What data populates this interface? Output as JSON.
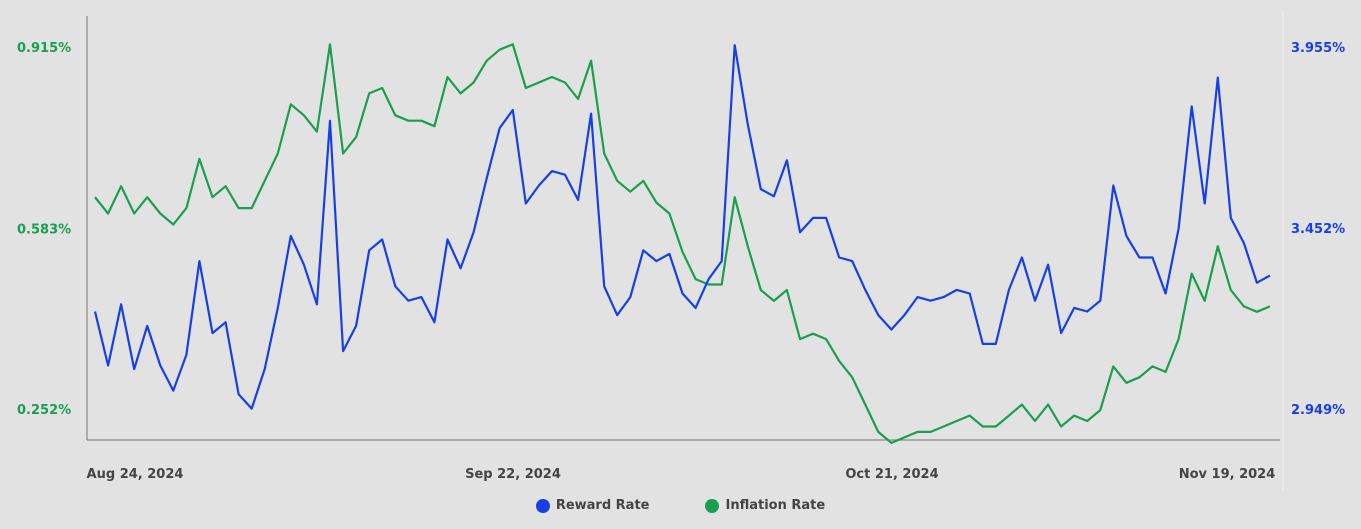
{
  "chart_data": {
    "type": "line",
    "title": "",
    "x_labels": [
      "Aug 24, 2024",
      "Sep 22, 2024",
      "Oct 21, 2024",
      "Nov 19, 2024"
    ],
    "left_axis": {
      "ticks": [
        "0.915%",
        "0.583%",
        "0.252%"
      ],
      "values": [
        0.915,
        0.583,
        0.252
      ],
      "color": "#1a9e50"
    },
    "right_axis": {
      "ticks": [
        "3.955%",
        "3.452%",
        "2.949%"
      ],
      "values": [
        3.955,
        3.452,
        2.949
      ],
      "color": "#1640e6"
    },
    "series": [
      {
        "name": "Reward Rate",
        "axis": "right",
        "color": "#1640e6",
        "values": [
          3.22,
          3.07,
          3.24,
          3.06,
          3.18,
          3.07,
          3.0,
          3.1,
          3.36,
          3.16,
          3.19,
          2.99,
          2.95,
          3.06,
          3.23,
          3.43,
          3.35,
          3.24,
          3.75,
          3.11,
          3.18,
          3.39,
          3.42,
          3.29,
          3.25,
          3.26,
          3.19,
          3.42,
          3.34,
          3.44,
          3.59,
          3.73,
          3.78,
          3.52,
          3.57,
          3.61,
          3.6,
          3.53,
          3.77,
          3.29,
          3.21,
          3.26,
          3.39,
          3.36,
          3.38,
          3.27,
          3.23,
          3.31,
          3.36,
          3.96,
          3.74,
          3.56,
          3.54,
          3.64,
          3.44,
          3.48,
          3.48,
          3.37,
          3.36,
          3.28,
          3.21,
          3.17,
          3.21,
          3.26,
          3.25,
          3.26,
          3.28,
          3.27,
          3.13,
          3.13,
          3.28,
          3.37,
          3.25,
          3.35,
          3.16,
          3.23,
          3.22,
          3.25,
          3.57,
          3.43,
          3.37,
          3.37,
          3.27,
          3.45,
          3.79,
          3.52,
          3.87,
          3.48,
          3.41,
          3.3,
          3.32
        ]
      },
      {
        "name": "Inflation Rate",
        "axis": "left",
        "color": "#1a9e50",
        "values": [
          0.64,
          0.61,
          0.66,
          0.61,
          0.64,
          0.61,
          0.59,
          0.62,
          0.71,
          0.64,
          0.66,
          0.62,
          0.62,
          0.67,
          0.72,
          0.81,
          0.79,
          0.76,
          0.92,
          0.72,
          0.75,
          0.83,
          0.84,
          0.79,
          0.78,
          0.78,
          0.77,
          0.86,
          0.83,
          0.85,
          0.89,
          0.91,
          0.92,
          0.84,
          0.85,
          0.86,
          0.85,
          0.82,
          0.89,
          0.72,
          0.67,
          0.65,
          0.67,
          0.63,
          0.61,
          0.54,
          0.49,
          0.48,
          0.48,
          0.64,
          0.55,
          0.47,
          0.45,
          0.47,
          0.38,
          0.39,
          0.38,
          0.34,
          0.31,
          0.26,
          0.21,
          0.19,
          0.2,
          0.21,
          0.21,
          0.22,
          0.23,
          0.24,
          0.22,
          0.22,
          0.24,
          0.26,
          0.23,
          0.26,
          0.22,
          0.24,
          0.23,
          0.25,
          0.33,
          0.3,
          0.31,
          0.33,
          0.32,
          0.38,
          0.5,
          0.45,
          0.55,
          0.47,
          0.44,
          0.43,
          0.44
        ]
      }
    ],
    "legend_position": "bottom-center",
    "grid": false
  }
}
